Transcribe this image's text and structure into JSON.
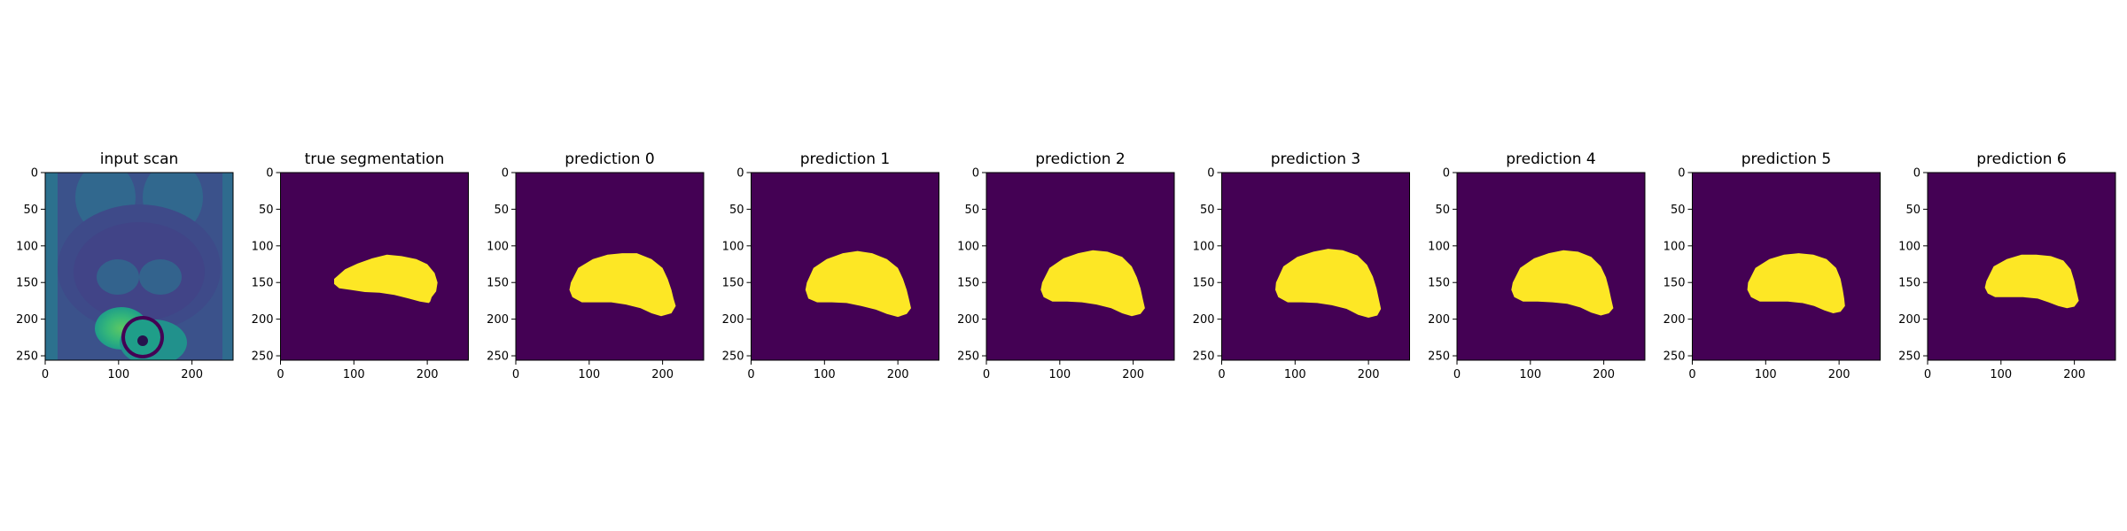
{
  "chart_data": [
    {
      "type": "heatmap",
      "title": "input scan",
      "content": "mri-scan",
      "xlim": [
        0,
        256
      ],
      "ylim": [
        256,
        0
      ],
      "xticks": [
        0,
        100,
        200
      ],
      "yticks": [
        0,
        50,
        100,
        150,
        200,
        250
      ],
      "colormap": "viridis"
    },
    {
      "type": "heatmap",
      "title": "true segmentation",
      "content": "mask",
      "xlim": [
        0,
        256
      ],
      "ylim": [
        256,
        0
      ],
      "xticks": [
        0,
        100,
        200
      ],
      "yticks": [
        0,
        50,
        100,
        150,
        200,
        250
      ],
      "background_color": "#440154",
      "mask_color": "#fde725",
      "mask_polygon": [
        [
          73,
          145
        ],
        [
          88,
          132
        ],
        [
          105,
          124
        ],
        [
          125,
          117
        ],
        [
          145,
          112
        ],
        [
          165,
          114
        ],
        [
          185,
          118
        ],
        [
          200,
          125
        ],
        [
          210,
          137
        ],
        [
          214,
          150
        ],
        [
          212,
          162
        ],
        [
          206,
          170
        ],
        [
          204,
          176
        ],
        [
          202,
          178
        ],
        [
          190,
          176
        ],
        [
          175,
          172
        ],
        [
          155,
          167
        ],
        [
          135,
          164
        ],
        [
          115,
          163
        ],
        [
          95,
          160
        ],
        [
          80,
          158
        ],
        [
          73,
          152
        ]
      ]
    },
    {
      "type": "heatmap",
      "title": "prediction 0",
      "content": "mask",
      "xlim": [
        0,
        256
      ],
      "ylim": [
        256,
        0
      ],
      "xticks": [
        0,
        100,
        200
      ],
      "yticks": [
        0,
        50,
        100,
        150,
        200,
        250
      ],
      "background_color": "#440154",
      "mask_color": "#fde725",
      "mask_polygon": [
        [
          75,
          150
        ],
        [
          85,
          130
        ],
        [
          105,
          118
        ],
        [
          125,
          112
        ],
        [
          145,
          110
        ],
        [
          165,
          110
        ],
        [
          185,
          118
        ],
        [
          200,
          130
        ],
        [
          207,
          145
        ],
        [
          212,
          160
        ],
        [
          215,
          172
        ],
        [
          218,
          182
        ],
        [
          212,
          192
        ],
        [
          198,
          196
        ],
        [
          185,
          192
        ],
        [
          170,
          185
        ],
        [
          150,
          180
        ],
        [
          130,
          177
        ],
        [
          110,
          177
        ],
        [
          90,
          177
        ],
        [
          77,
          170
        ],
        [
          73,
          160
        ]
      ]
    },
    {
      "type": "heatmap",
      "title": "prediction 1",
      "content": "mask",
      "xlim": [
        0,
        256
      ],
      "ylim": [
        256,
        0
      ],
      "xticks": [
        0,
        100,
        200
      ],
      "yticks": [
        0,
        50,
        100,
        150,
        200,
        250
      ],
      "background_color": "#440154",
      "mask_color": "#fde725",
      "mask_polygon": [
        [
          76,
          150
        ],
        [
          85,
          130
        ],
        [
          103,
          118
        ],
        [
          125,
          110
        ],
        [
          145,
          107
        ],
        [
          165,
          110
        ],
        [
          185,
          118
        ],
        [
          200,
          130
        ],
        [
          207,
          145
        ],
        [
          212,
          160
        ],
        [
          215,
          172
        ],
        [
          218,
          185
        ],
        [
          212,
          193
        ],
        [
          200,
          197
        ],
        [
          185,
          193
        ],
        [
          170,
          187
        ],
        [
          150,
          182
        ],
        [
          130,
          178
        ],
        [
          110,
          177
        ],
        [
          90,
          177
        ],
        [
          78,
          172
        ],
        [
          74,
          160
        ]
      ]
    },
    {
      "type": "heatmap",
      "title": "prediction 2",
      "content": "mask",
      "xlim": [
        0,
        256
      ],
      "ylim": [
        256,
        0
      ],
      "xticks": [
        0,
        100,
        200
      ],
      "yticks": [
        0,
        50,
        100,
        150,
        200,
        250
      ],
      "background_color": "#440154",
      "mask_color": "#fde725",
      "mask_polygon": [
        [
          76,
          150
        ],
        [
          86,
          130
        ],
        [
          105,
          117
        ],
        [
          125,
          110
        ],
        [
          145,
          106
        ],
        [
          165,
          108
        ],
        [
          185,
          115
        ],
        [
          198,
          128
        ],
        [
          205,
          143
        ],
        [
          210,
          158
        ],
        [
          213,
          172
        ],
        [
          216,
          185
        ],
        [
          210,
          193
        ],
        [
          198,
          196
        ],
        [
          185,
          192
        ],
        [
          170,
          185
        ],
        [
          150,
          180
        ],
        [
          130,
          177
        ],
        [
          110,
          176
        ],
        [
          90,
          176
        ],
        [
          78,
          170
        ],
        [
          74,
          160
        ]
      ]
    },
    {
      "type": "heatmap",
      "title": "prediction 3",
      "content": "mask",
      "xlim": [
        0,
        256
      ],
      "ylim": [
        256,
        0
      ],
      "xticks": [
        0,
        100,
        200
      ],
      "yticks": [
        0,
        50,
        100,
        150,
        200,
        250
      ],
      "background_color": "#440154",
      "mask_color": "#fde725",
      "mask_polygon": [
        [
          74,
          150
        ],
        [
          84,
          128
        ],
        [
          103,
          115
        ],
        [
          125,
          108
        ],
        [
          145,
          104
        ],
        [
          165,
          106
        ],
        [
          185,
          113
        ],
        [
          198,
          126
        ],
        [
          206,
          142
        ],
        [
          211,
          158
        ],
        [
          214,
          172
        ],
        [
          217,
          186
        ],
        [
          212,
          195
        ],
        [
          200,
          198
        ],
        [
          186,
          194
        ],
        [
          170,
          186
        ],
        [
          150,
          181
        ],
        [
          130,
          178
        ],
        [
          110,
          177
        ],
        [
          90,
          177
        ],
        [
          77,
          170
        ],
        [
          73,
          160
        ]
      ]
    },
    {
      "type": "heatmap",
      "title": "prediction 4",
      "content": "mask",
      "xlim": [
        0,
        256
      ],
      "ylim": [
        256,
        0
      ],
      "xticks": [
        0,
        100,
        200
      ],
      "yticks": [
        0,
        50,
        100,
        150,
        200,
        250
      ],
      "background_color": "#440154",
      "mask_color": "#fde725",
      "mask_polygon": [
        [
          76,
          150
        ],
        [
          86,
          130
        ],
        [
          105,
          117
        ],
        [
          125,
          110
        ],
        [
          145,
          106
        ],
        [
          165,
          108
        ],
        [
          183,
          115
        ],
        [
          196,
          128
        ],
        [
          203,
          143
        ],
        [
          207,
          158
        ],
        [
          210,
          172
        ],
        [
          213,
          185
        ],
        [
          207,
          192
        ],
        [
          196,
          195
        ],
        [
          183,
          191
        ],
        [
          168,
          184
        ],
        [
          150,
          179
        ],
        [
          130,
          177
        ],
        [
          110,
          176
        ],
        [
          90,
          176
        ],
        [
          78,
          170
        ],
        [
          74,
          160
        ]
      ]
    },
    {
      "type": "heatmap",
      "title": "prediction 5",
      "content": "mask",
      "xlim": [
        0,
        256
      ],
      "ylim": [
        256,
        0
      ],
      "xticks": [
        0,
        100,
        200
      ],
      "yticks": [
        0,
        50,
        100,
        150,
        200,
        250
      ],
      "background_color": "#440154",
      "mask_color": "#fde725",
      "mask_polygon": [
        [
          76,
          150
        ],
        [
          86,
          130
        ],
        [
          105,
          118
        ],
        [
          125,
          112
        ],
        [
          145,
          110
        ],
        [
          165,
          112
        ],
        [
          183,
          118
        ],
        [
          196,
          130
        ],
        [
          202,
          145
        ],
        [
          205,
          160
        ],
        [
          207,
          172
        ],
        [
          208,
          182
        ],
        [
          202,
          190
        ],
        [
          192,
          192
        ],
        [
          180,
          188
        ],
        [
          166,
          182
        ],
        [
          150,
          178
        ],
        [
          130,
          176
        ],
        [
          110,
          176
        ],
        [
          92,
          176
        ],
        [
          80,
          170
        ],
        [
          75,
          160
        ]
      ]
    },
    {
      "type": "heatmap",
      "title": "prediction 6",
      "content": "mask",
      "xlim": [
        0,
        256
      ],
      "ylim": [
        256,
        0
      ],
      "xticks": [
        0,
        100,
        200
      ],
      "yticks": [
        0,
        50,
        100,
        150,
        200,
        250
      ],
      "background_color": "#440154",
      "mask_color": "#fde725",
      "mask_polygon": [
        [
          80,
          148
        ],
        [
          90,
          128
        ],
        [
          108,
          118
        ],
        [
          128,
          112
        ],
        [
          148,
          112
        ],
        [
          168,
          114
        ],
        [
          185,
          120
        ],
        [
          195,
          132
        ],
        [
          200,
          148
        ],
        [
          203,
          162
        ],
        [
          206,
          175
        ],
        [
          200,
          183
        ],
        [
          190,
          185
        ],
        [
          178,
          182
        ],
        [
          165,
          177
        ],
        [
          150,
          172
        ],
        [
          130,
          170
        ],
        [
          110,
          170
        ],
        [
          92,
          170
        ],
        [
          82,
          165
        ],
        [
          78,
          157
        ]
      ]
    }
  ]
}
